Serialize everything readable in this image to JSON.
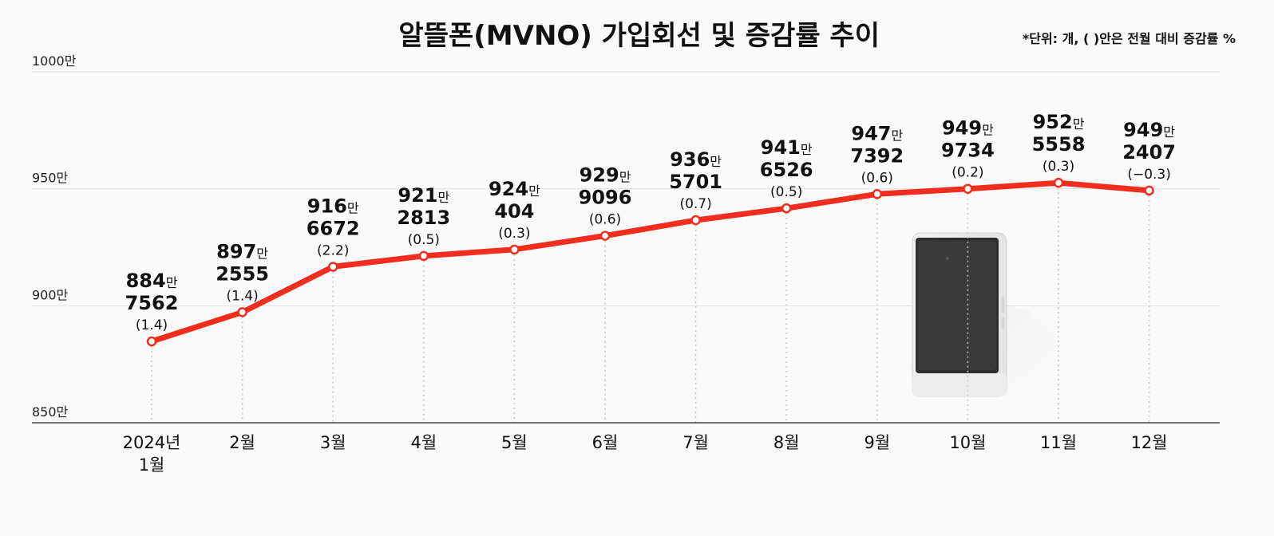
{
  "chart_data": {
    "type": "line",
    "title": "알뜰폰(MVNO) 가입회선 및 증감률 추이",
    "unit_note": "*단위: 개, ( )안은 전월 대비 증감률 %",
    "categories": [
      "2024년 1월",
      "2월",
      "3월",
      "4월",
      "5월",
      "6월",
      "7월",
      "8월",
      "9월",
      "10월",
      "11월",
      "12월"
    ],
    "x_tick_lines": [
      [
        "2024년",
        "1월"
      ],
      [
        "2월"
      ],
      [
        "3월"
      ],
      [
        "4월"
      ],
      [
        "5월"
      ],
      [
        "6월"
      ],
      [
        "7월"
      ],
      [
        "8월"
      ],
      [
        "9월"
      ],
      [
        "10월"
      ],
      [
        "11월"
      ],
      [
        "12월"
      ]
    ],
    "series": [
      {
        "values": [
          8847562,
          8972555,
          9166672,
          9212813,
          9240404,
          9299096,
          9365701,
          9416526,
          9477392,
          9499734,
          9525558,
          9492407
        ],
        "value_labels_top": [
          "884",
          "897",
          "916",
          "921",
          "924",
          "929",
          "936",
          "941",
          "947",
          "949",
          "952",
          "949"
        ],
        "value_labels_bottom": [
          "7562",
          "2555",
          "6672",
          "2813",
          "404",
          "9096",
          "5701",
          "6526",
          "7392",
          "9734",
          "5558",
          "2407"
        ],
        "change_pct_labels": [
          "(1.4)",
          "(1.4)",
          "(2.2)",
          "(0.5)",
          "(0.3)",
          "(0.6)",
          "(0.7)",
          "(0.5)",
          "(0.6)",
          "(0.2)",
          "(0.3)",
          "(−0.3)"
        ]
      }
    ],
    "man_suffix": "만",
    "y_ticks": [
      {
        "value": 8500000,
        "label": "850만"
      },
      {
        "value": 9000000,
        "label": "900만"
      },
      {
        "value": 9500000,
        "label": "950만"
      },
      {
        "value": 10000000,
        "label": "1000만"
      }
    ],
    "ylim": [
      8500000,
      10000000
    ],
    "grid": true,
    "colors": {
      "line": "#f02d1f",
      "grid": "#e2e2e2",
      "dotted_guides": "#c8c8c8"
    },
    "decoration_icon": "smartphone-illustration"
  }
}
